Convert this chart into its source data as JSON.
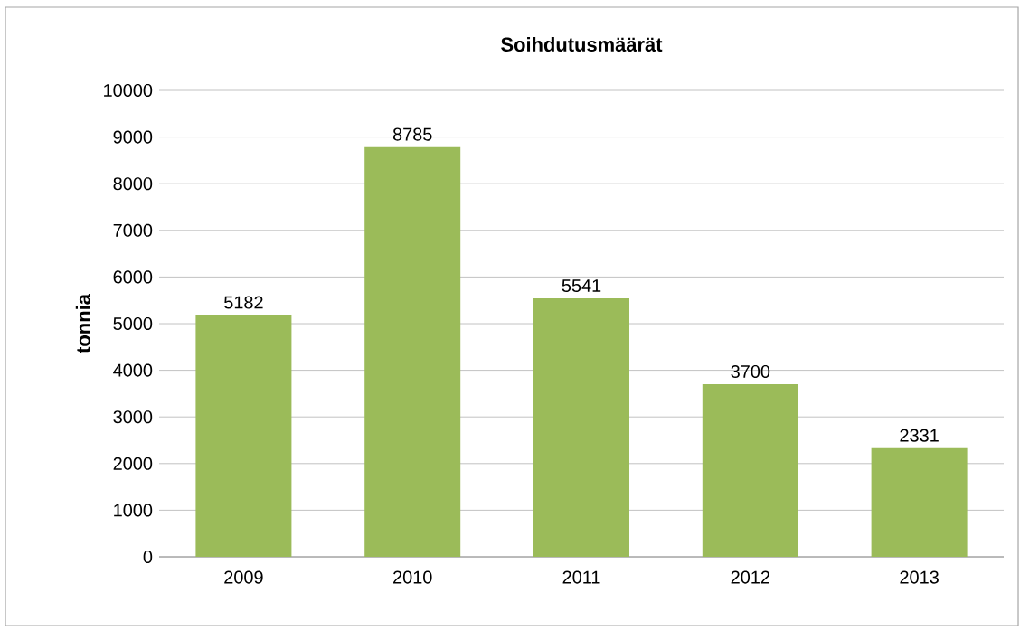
{
  "chart_data": {
    "type": "bar",
    "title": "Soihdutusmäärät",
    "ylabel": "tonnia",
    "categories": [
      "2009",
      "2010",
      "2011",
      "2012",
      "2013"
    ],
    "values": [
      5182,
      8785,
      5541,
      3700,
      2331
    ],
    "color": "#9bbb59",
    "ylim": [
      0,
      10000
    ],
    "yticks": [
      0,
      1000,
      2000,
      3000,
      4000,
      5000,
      6000,
      7000,
      8000,
      9000,
      10000
    ],
    "grid": "y",
    "data_labels": true
  }
}
